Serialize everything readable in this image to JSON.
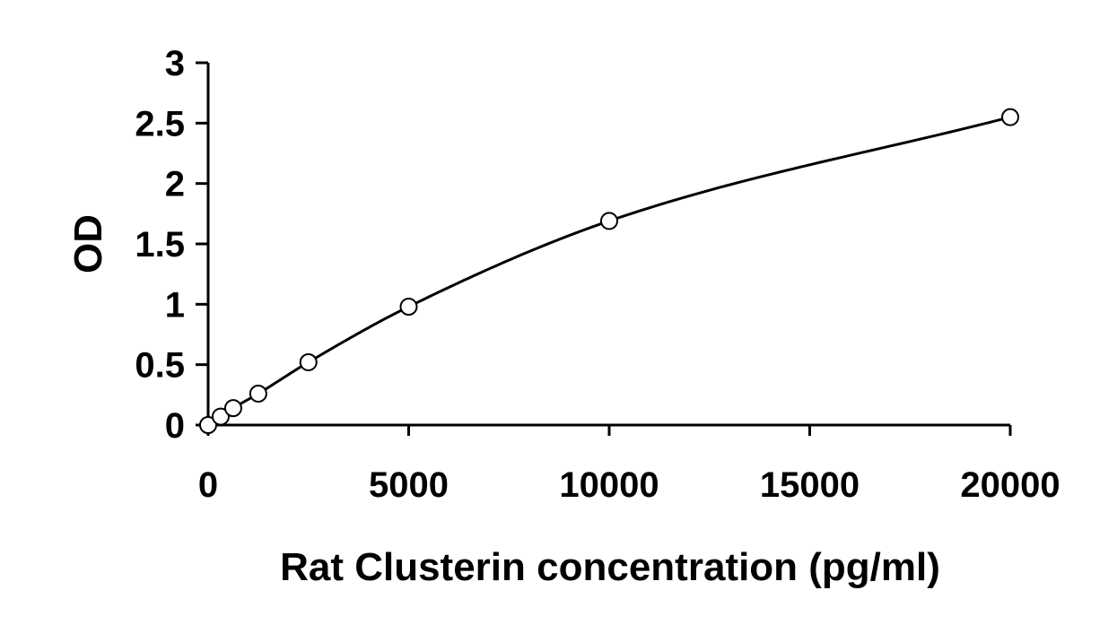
{
  "chart_data": {
    "type": "scatter",
    "title": "",
    "xlabel": "Rat Clusterin concentration (pg/ml)",
    "ylabel": "OD",
    "xlim": [
      0,
      20000
    ],
    "ylim": [
      0,
      3
    ],
    "xticks": [
      0,
      5000,
      10000,
      15000,
      20000
    ],
    "yticks": [
      0,
      0.5,
      1,
      1.5,
      2,
      2.5,
      3
    ],
    "xtick_labels": [
      "0",
      "5000",
      "10000",
      "15000",
      "20000"
    ],
    "ytick_labels": [
      "0",
      "0.5",
      "1",
      "1.5",
      "2",
      "2.5",
      "3"
    ],
    "grid": false,
    "legend": "none",
    "series": [
      {
        "x": [
          0,
          312.5,
          625,
          1250,
          2500,
          5000,
          10000,
          20000
        ],
        "y": [
          0.0,
          0.07,
          0.14,
          0.26,
          0.52,
          0.98,
          1.69,
          2.55
        ],
        "marker": "open-circle",
        "trendline": "smooth-curve"
      }
    ]
  }
}
